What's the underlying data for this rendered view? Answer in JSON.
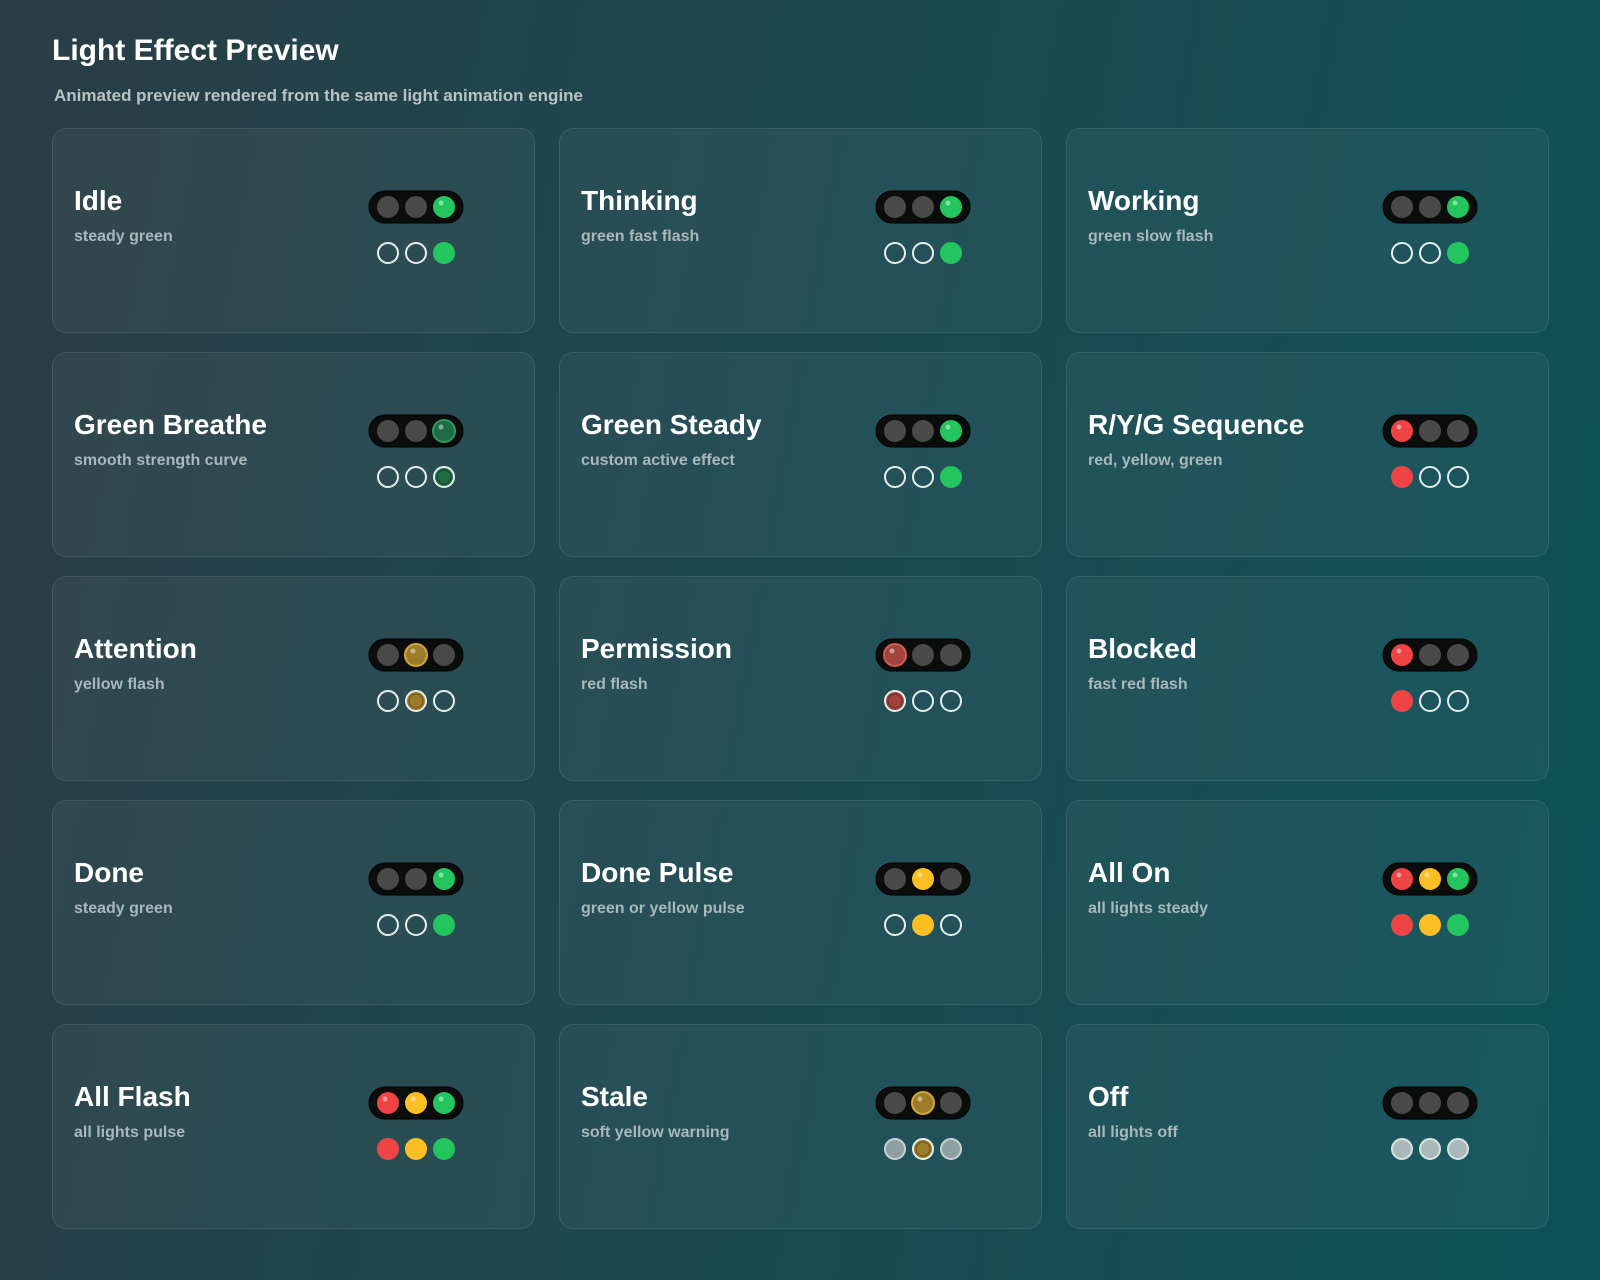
{
  "header": {
    "title": "Light Effect Preview",
    "subtitle": "Animated preview rendered from the same light animation engine"
  },
  "cards": [
    {
      "name": "Idle",
      "description": "steady green"
    },
    {
      "name": "Thinking",
      "description": "green fast flash"
    },
    {
      "name": "Working",
      "description": "green slow flash"
    },
    {
      "name": "Green Breathe",
      "description": "smooth strength curve"
    },
    {
      "name": "Green Steady",
      "description": "custom active effect"
    },
    {
      "name": "R/Y/G Sequence",
      "description": "red, yellow, green"
    },
    {
      "name": "Attention",
      "description": "yellow flash"
    },
    {
      "name": "Permission",
      "description": "red flash"
    },
    {
      "name": "Blocked",
      "description": "fast red flash"
    },
    {
      "name": "Done",
      "description": "steady green"
    },
    {
      "name": "Done Pulse",
      "description": "green or yellow pulse"
    },
    {
      "name": "All On",
      "description": "all lights steady"
    },
    {
      "name": "All Flash",
      "description": "all lights pulse"
    },
    {
      "name": "Stale",
      "description": "soft yellow warning"
    },
    {
      "name": "Off",
      "description": "all lights off"
    }
  ]
}
